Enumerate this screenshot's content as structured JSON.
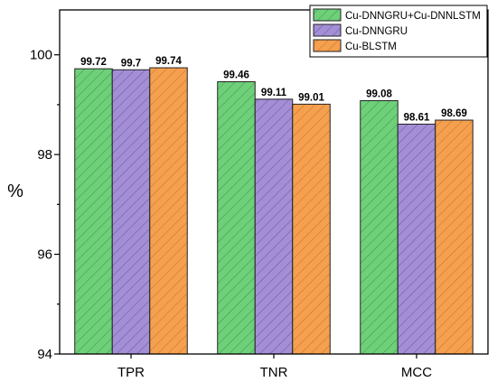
{
  "chart_data": {
    "type": "bar",
    "title": "",
    "xlabel": "",
    "ylabel": "%",
    "ylim": [
      94,
      100.9
    ],
    "yticks": [
      94,
      96,
      98,
      100
    ],
    "grid": false,
    "legend_position": "top-right",
    "categories": [
      "TPR",
      "TNR",
      "MCC"
    ],
    "series": [
      {
        "name": "Cu-DNNGRU+Cu-DNNLSTM",
        "values": [
          99.72,
          99.46,
          99.08
        ],
        "labels": [
          "99.72",
          "99.46",
          "99.08"
        ],
        "color": "#6fd07a",
        "hatch": "#3f9a4a"
      },
      {
        "name": "Cu-DNNGRU",
        "values": [
          99.7,
          99.11,
          98.61
        ],
        "labels": [
          "99.7",
          "99.11",
          "98.61"
        ],
        "color": "#a48fd6",
        "hatch": "#6b58a8"
      },
      {
        "name": "Cu-BLSTM",
        "values": [
          99.74,
          99.01,
          98.69
        ],
        "labels": [
          "99.74",
          "99.01",
          "98.69"
        ],
        "color": "#f5a04f",
        "hatch": "#c9742a"
      }
    ]
  }
}
